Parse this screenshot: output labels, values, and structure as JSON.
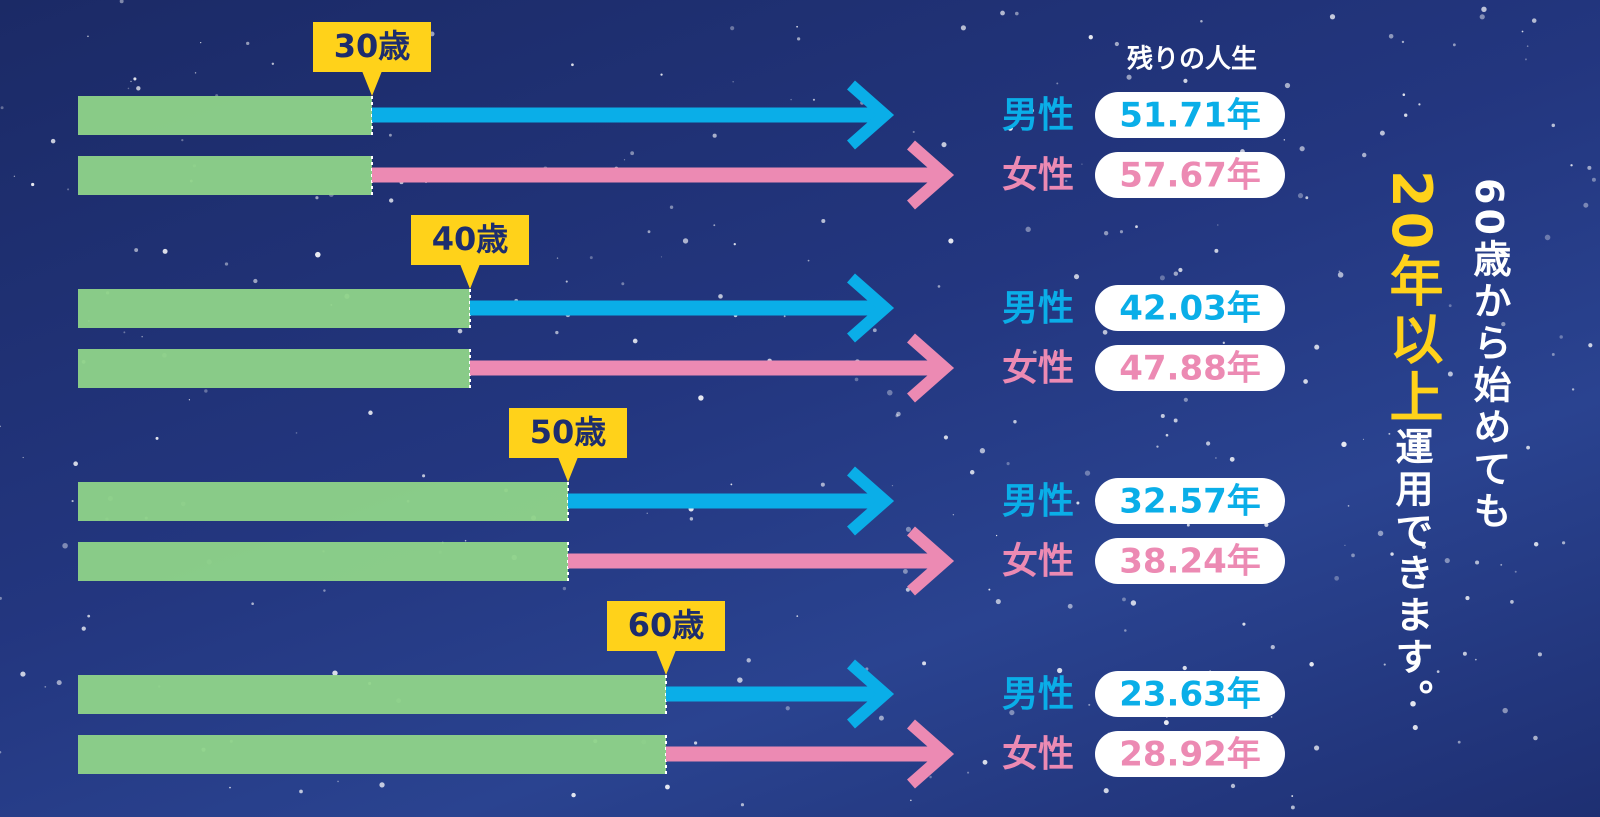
{
  "header": "残りの人生",
  "groups": [
    {
      "age": {
        "value": 30,
        "label": "30歳"
      },
      "rows": [
        {
          "label": "男性",
          "value": "51.71年"
        },
        {
          "label": "女性",
          "value": "57.67年"
        }
      ]
    },
    {
      "age": {
        "value": 40,
        "label": "40歳"
      },
      "rows": [
        {
          "label": "男性",
          "value": "42.03年"
        },
        {
          "label": "女性",
          "value": "47.88年"
        }
      ]
    },
    {
      "age": {
        "value": 50,
        "label": "50歳"
      },
      "rows": [
        {
          "label": "男性",
          "value": "32.57年"
        },
        {
          "label": "女性",
          "value": "38.24年"
        }
      ]
    },
    {
      "age": {
        "value": 60,
        "label": "60歳"
      },
      "rows": [
        {
          "label": "男性",
          "value": "23.63年"
        },
        {
          "label": "女性",
          "value": "28.92年"
        }
      ]
    }
  ],
  "side": {
    "line1": "60歳から始めても",
    "highlight": "20年以上",
    "rest": "運用できます。"
  }
}
